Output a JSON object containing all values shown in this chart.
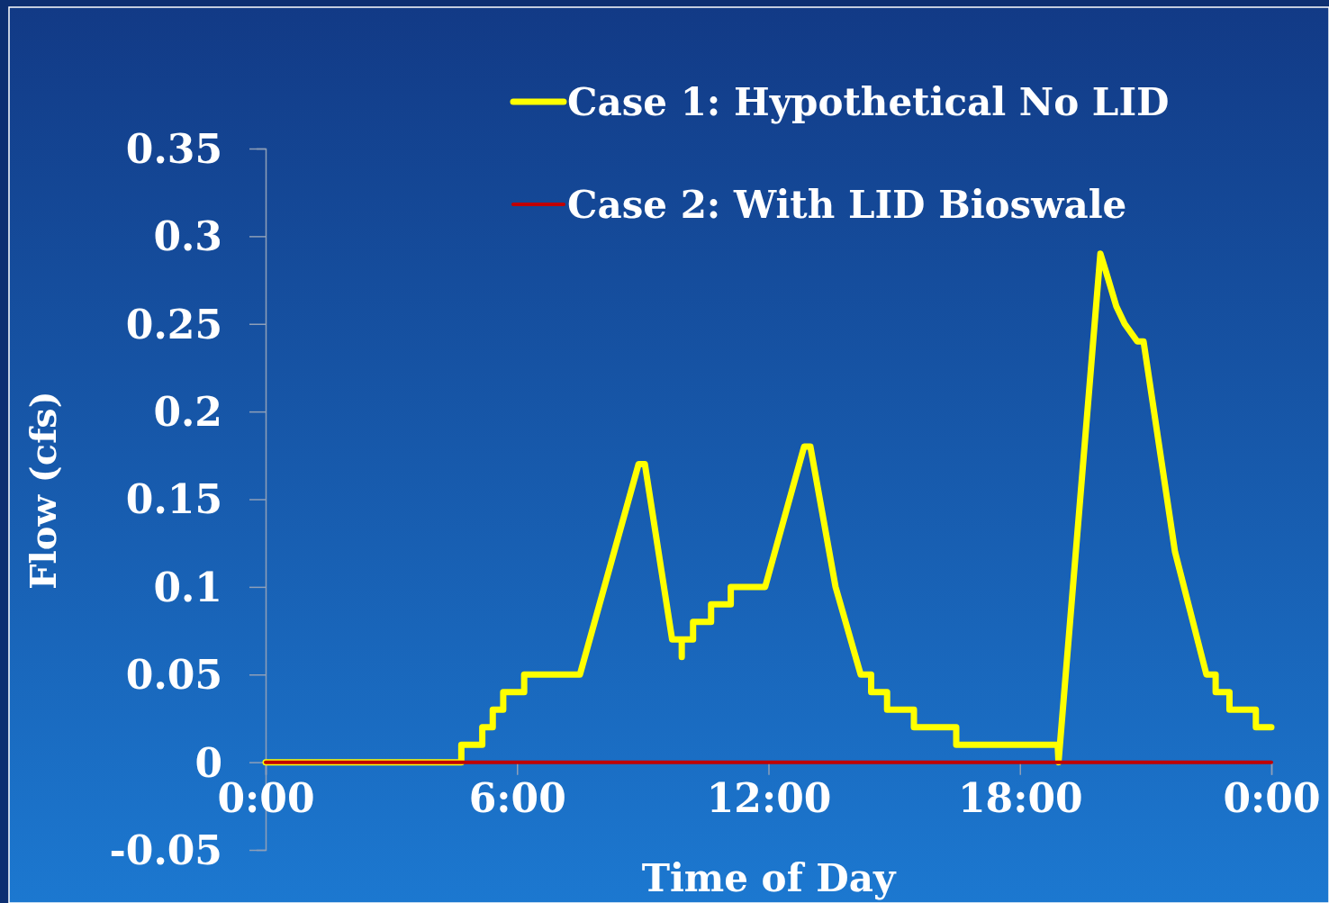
{
  "chart_data": {
    "type": "line",
    "xlabel": "Time of Day",
    "ylabel": "Flow (cfs)",
    "xlim": [
      0,
      24
    ],
    "xticks": [
      {
        "value": 0,
        "label": "0:00"
      },
      {
        "value": 6,
        "label": "6:00"
      },
      {
        "value": 12,
        "label": "12:00"
      },
      {
        "value": 18,
        "label": "18:00"
      },
      {
        "value": 24,
        "label": "0:00"
      }
    ],
    "ylim": [
      -0.05,
      0.35
    ],
    "yticks": [
      -0.05,
      0,
      0.05,
      0.1,
      0.15,
      0.2,
      0.25,
      0.3,
      0.35
    ],
    "grid": false,
    "legend": "top",
    "marker": "none",
    "line_style": "solid",
    "series": [
      {
        "name": "Case 1: Hypothetical No LID",
        "color": "#ffff00",
        "x": [
          0,
          4.67,
          4.67,
          5.17,
          5.17,
          5.42,
          5.42,
          5.67,
          5.67,
          6.17,
          6.17,
          7.5,
          8.9,
          9.05,
          9.7,
          9.93,
          9.93,
          9.93,
          10.2,
          10.2,
          10.63,
          10.63,
          11.1,
          11.1,
          11.92,
          12.85,
          13.0,
          13.6,
          14.2,
          14.45,
          14.45,
          14.83,
          14.83,
          15.47,
          15.47,
          16.48,
          16.48,
          18.9,
          18.92,
          19.92,
          20.05,
          20.3,
          20.5,
          20.8,
          20.95,
          21.7,
          22.45,
          22.67,
          22.67,
          23.0,
          23.0,
          23.63,
          23.63,
          24
        ],
        "values": [
          0,
          0,
          0.01,
          0.01,
          0.02,
          0.02,
          0.03,
          0.03,
          0.04,
          0.04,
          0.05,
          0.05,
          0.17,
          0.17,
          0.07,
          0.07,
          0.06,
          0.07,
          0.07,
          0.08,
          0.08,
          0.09,
          0.09,
          0.1,
          0.1,
          0.18,
          0.18,
          0.1,
          0.05,
          0.05,
          0.04,
          0.04,
          0.03,
          0.03,
          0.02,
          0.02,
          0.01,
          0.01,
          0,
          0.29,
          0.28,
          0.26,
          0.25,
          0.24,
          0.24,
          0.12,
          0.05,
          0.05,
          0.04,
          0.04,
          0.03,
          0.03,
          0.02,
          0.02
        ]
      },
      {
        "name": "Case 2: With LID Bioswale",
        "color": "#c00000",
        "x": [
          0,
          24
        ],
        "values": [
          0,
          0
        ]
      }
    ]
  }
}
